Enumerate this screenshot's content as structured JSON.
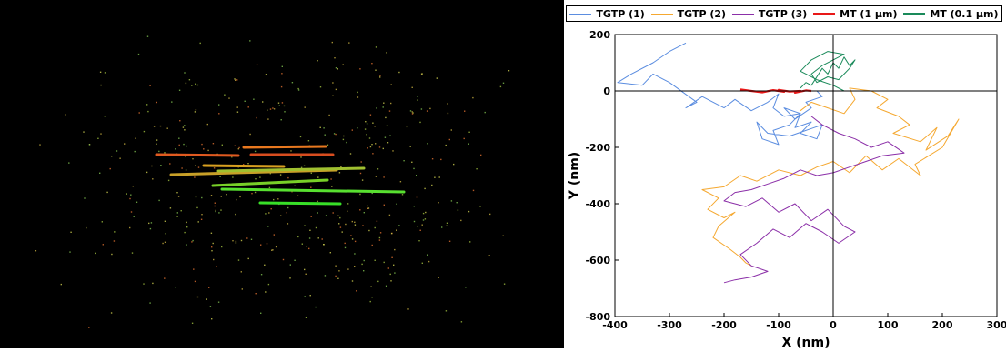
{
  "chart_data": {
    "type": "line",
    "title": "",
    "xlabel": "X (nm)",
    "ylabel": "Y (nm)",
    "xlim": [
      -400,
      300
    ],
    "ylim": [
      -800,
      200
    ],
    "x_ticks": [
      -400,
      -300,
      -200,
      -100,
      0,
      100,
      200,
      300
    ],
    "y_ticks": [
      200,
      0,
      -200,
      -400,
      -600,
      -800
    ],
    "x_tick_labels": [
      "-400",
      "-300",
      "-200",
      "-100",
      "0",
      "100",
      "200",
      "300"
    ],
    "y_tick_labels": [
      "200",
      "0",
      "-200",
      "-400",
      "-600",
      "-800"
    ],
    "grid": false,
    "legend_position": "top",
    "series": [
      {
        "name": "TGTP (1)",
        "color": "#5b8de0",
        "x": [
          -270,
          -300,
          -330,
          -370,
          -395,
          -350,
          -330,
          -300,
          -250,
          -270,
          -240,
          -200,
          -180,
          -150,
          -120,
          -100,
          -110,
          -90,
          -60,
          -70,
          -40,
          -60,
          -30,
          -20,
          -50,
          -80,
          -120,
          -140,
          -130,
          -100,
          -110,
          -80,
          -60,
          -90,
          -70,
          -40,
          -50,
          -20,
          -30
        ],
        "y": [
          170,
          140,
          100,
          60,
          30,
          20,
          60,
          30,
          -40,
          -60,
          -20,
          -60,
          -30,
          -70,
          -40,
          -10,
          -60,
          -90,
          -80,
          -130,
          -110,
          -150,
          -170,
          -120,
          -140,
          -160,
          -150,
          -110,
          -170,
          -190,
          -140,
          -120,
          -80,
          -60,
          -100,
          -60,
          -40,
          -20,
          0
        ]
      },
      {
        "name": "TGTP (2)",
        "color": "#f5a830",
        "x": [
          -60,
          -40,
          -10,
          20,
          40,
          30,
          70,
          100,
          80,
          120,
          140,
          110,
          160,
          190,
          170,
          210,
          230,
          200,
          150,
          160,
          120,
          90,
          60,
          30,
          0,
          -30,
          -60,
          -100,
          -140,
          -170,
          -200,
          -240,
          -210,
          -230,
          -200,
          -180,
          -210,
          -220,
          -190,
          -170,
          -160,
          -150
        ],
        "y": [
          -70,
          -40,
          -60,
          -80,
          -30,
          10,
          0,
          -30,
          -60,
          -90,
          -120,
          -150,
          -180,
          -130,
          -210,
          -160,
          -100,
          -200,
          -260,
          -300,
          -240,
          -280,
          -230,
          -290,
          -250,
          -270,
          -300,
          -280,
          -320,
          -300,
          -340,
          -350,
          -380,
          -420,
          -450,
          -430,
          -480,
          -520,
          -560,
          -590,
          -610,
          -620
        ]
      },
      {
        "name": "TGTP (3)",
        "color": "#8b2fa8",
        "x": [
          -40,
          -20,
          10,
          40,
          70,
          100,
          130,
          90,
          60,
          30,
          0,
          -30,
          -60,
          -90,
          -120,
          -150,
          -180,
          -200,
          -160,
          -130,
          -100,
          -70,
          -40,
          -10,
          20,
          40,
          10,
          -20,
          -50,
          -80,
          -110,
          -140,
          -170,
          -150,
          -120,
          -150,
          -180,
          -200
        ],
        "y": [
          -90,
          -120,
          -150,
          -170,
          -200,
          -180,
          -220,
          -230,
          -250,
          -270,
          -290,
          -300,
          -280,
          -310,
          -330,
          -350,
          -360,
          -390,
          -410,
          -380,
          -430,
          -400,
          -460,
          -420,
          -480,
          -500,
          -540,
          -500,
          -470,
          -520,
          -490,
          -540,
          -580,
          -620,
          -640,
          -660,
          -670,
          -680
        ]
      },
      {
        "name": "MT (1 μm)",
        "color": "#e81818",
        "x": [
          -170,
          -150,
          -130,
          -110,
          -90,
          -100,
          -80,
          -60,
          -70,
          -50,
          -40
        ],
        "y": [
          5,
          0,
          -5,
          3,
          -3,
          4,
          -2,
          0,
          -6,
          2,
          0
        ]
      },
      {
        "name": "MT (0.1 μm)",
        "color": "#1a8a5a",
        "x": [
          -60,
          -50,
          -40,
          -30,
          -20,
          -10,
          0,
          10,
          20,
          30,
          40,
          30,
          20,
          10,
          -10,
          -30,
          -40,
          -20,
          0,
          20,
          -10,
          -40,
          -60,
          -30,
          0,
          20
        ],
        "y": [
          10,
          30,
          20,
          50,
          80,
          60,
          100,
          80,
          120,
          90,
          110,
          80,
          60,
          40,
          50,
          30,
          60,
          90,
          110,
          130,
          140,
          110,
          70,
          40,
          20,
          0
        ]
      }
    ],
    "reference_lines": {
      "x": 0,
      "y": 0
    }
  },
  "micrograph": {
    "tracks": [
      {
        "color": "#e05a20",
        "values": [
          0
        ]
      },
      {
        "color": "#e8781f",
        "values": [
          0
        ]
      },
      {
        "color": "#d84d1f",
        "values": [
          0
        ]
      },
      {
        "color": "#d8a020",
        "values": [
          0
        ]
      },
      {
        "color": "#c8a028",
        "values": [
          0
        ]
      },
      {
        "color": "#a0c030",
        "values": [
          0
        ]
      },
      {
        "color": "#78d028",
        "values": [
          0
        ]
      },
      {
        "color": "#58e030",
        "values": [
          0
        ]
      },
      {
        "color": "#38e028",
        "values": [
          0
        ]
      }
    ]
  }
}
